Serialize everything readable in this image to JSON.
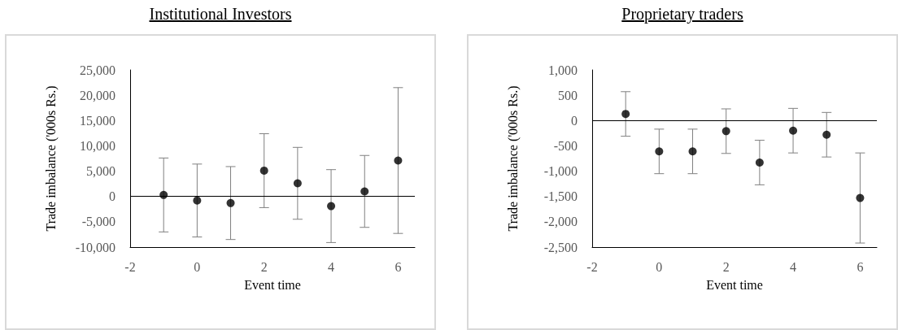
{
  "chart_data": [
    {
      "type": "scatter",
      "title": "Institutional Investors",
      "xlabel": "Event time",
      "ylabel": "Trade imbalance ('000s Rs.)",
      "color": "#000000",
      "marker": "circle",
      "grid": false,
      "x": [
        -1,
        0,
        1,
        2,
        3,
        4,
        5,
        6
      ],
      "values": [
        300,
        -800,
        -1300,
        5100,
        2600,
        -1900,
        1000,
        7100
      ],
      "errors": [
        7300,
        7200,
        7200,
        7300,
        7100,
        7200,
        7100,
        14400
      ],
      "xlim": [
        -2,
        6.5
      ],
      "xticks": [
        -2,
        0,
        2,
        4,
        6
      ],
      "ylim": [
        -10000,
        25000
      ],
      "yticks": [
        {
          "value": -10000,
          "label": "-10,000"
        },
        {
          "value": -5000,
          "label": "-5,000"
        },
        0,
        {
          "value": 5000,
          "label": "5,000"
        },
        {
          "value": 10000,
          "label": "10,000"
        },
        {
          "value": 15000,
          "label": "15,000"
        },
        {
          "value": 20000,
          "label": "20,000"
        },
        {
          "value": 25000,
          "label": "25,000"
        }
      ],
      "ref_lines": [
        {
          "axis": "y",
          "value": 0,
          "color": "#000000"
        }
      ]
    },
    {
      "type": "scatter",
      "title": "Proprietary traders",
      "xlabel": "Event time",
      "ylabel": "Trade imbalance ('000s Rs.)",
      "color": "#000000",
      "marker": "circle",
      "grid": false,
      "x": [
        -1,
        0,
        1,
        2,
        3,
        4,
        5,
        6
      ],
      "values": [
        130,
        -610,
        -610,
        -210,
        -830,
        -200,
        -280,
        -1530
      ],
      "errors": [
        440,
        440,
        440,
        440,
        440,
        440,
        440,
        890
      ],
      "xlim": [
        -2,
        6.5
      ],
      "xticks": [
        -2,
        0,
        2,
        4,
        6
      ],
      "ylim": [
        -2500,
        1000
      ],
      "yticks": [
        {
          "value": -2500,
          "label": "-2,500"
        },
        {
          "value": -2000,
          "label": "-2,000"
        },
        {
          "value": -1500,
          "label": "-1,500"
        },
        {
          "value": -1000,
          "label": "-1,000"
        },
        -500,
        0,
        500,
        {
          "value": 1000,
          "label": "1,000"
        }
      ],
      "ref_lines": [
        {
          "axis": "y",
          "value": 0,
          "color": "#000000"
        }
      ]
    }
  ]
}
